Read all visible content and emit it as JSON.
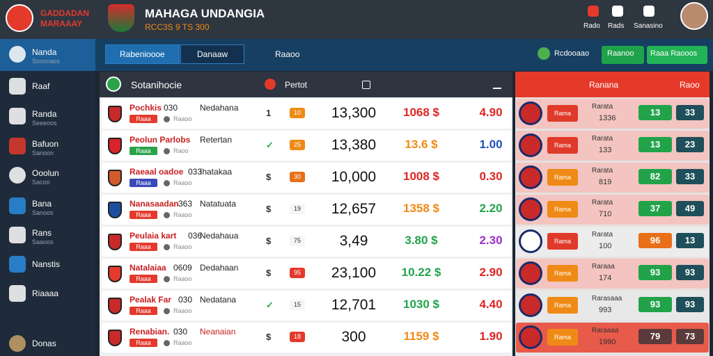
{
  "header": {
    "logo_line1": "GADDADAN",
    "logo_line2": "MARAAAY",
    "title": "MAHAGA UNDANGIA",
    "subtitle": "RCC3S 9 TS 300",
    "actions": [
      "Rado",
      "Rads",
      "Sanasino"
    ]
  },
  "sidebar": [
    {
      "label": "Nanda",
      "sub": "Sosonaos"
    },
    {
      "label": "Raaf"
    },
    {
      "label": "Randa",
      "sub": "Seeeoos"
    },
    {
      "label": "Bafuon",
      "sub": "Sanoon"
    },
    {
      "label": "Ooolun",
      "sub": "Sacoo"
    },
    {
      "label": "Bana",
      "sub": "Sanoos"
    },
    {
      "label": "Rans",
      "sub": "Saaoos"
    },
    {
      "label": "Nanstis"
    },
    {
      "label": "Riaaaa"
    },
    {
      "label": "Donas"
    }
  ],
  "tabs": [
    "Rabenioooe",
    "Danaaw",
    "Raaoo"
  ],
  "tab_actions": [
    "Rcdooaao",
    "Raanoo",
    "Raaa Raooos"
  ],
  "table": {
    "header": [
      "Sotanihocie",
      "Pertot"
    ],
    "rows": [
      {
        "team": "Pochkis",
        "code": "030",
        "opponent": "Nedahana",
        "tag": "Raaa",
        "info": "Raaoo",
        "mark": "1",
        "badge": "10",
        "odds": "13,300",
        "price": "1068 $",
        "price_color": "#e02424",
        "line": "4.90",
        "line_color": "#e02424"
      },
      {
        "team": "Peolun Parlobs",
        "code": "",
        "opponent": "Retertan",
        "tag": "Raaa",
        "info": "Raoo",
        "mark": "✓",
        "badge": "25",
        "odds": "13,380",
        "price": "13.6 $",
        "price_color": "#f08a16",
        "line": "1.00",
        "line_color": "#1f4fc0"
      },
      {
        "team": "Raeaal oadoe",
        "code": "033",
        "opponent": "Ihatakaa",
        "tag": "Raaa",
        "info": "Raaoo",
        "mark": "$",
        "badge": "30",
        "odds": "10,000",
        "price": "1008 $",
        "price_color": "#e02424",
        "line": "0.30",
        "line_color": "#e02424"
      },
      {
        "team": "Nanasaadan",
        "code": "363",
        "opponent": "Natatuata",
        "tag": "Raaa",
        "info": "Raaoo",
        "mark": "$",
        "badge": "19",
        "odds": "12,657",
        "price": "1358 $",
        "price_color": "#f08a16",
        "line": "2.20",
        "line_color": "#22a34a"
      },
      {
        "team": "Peulaia kart",
        "code": "036",
        "opponent": "Nedahaua",
        "tag": "Raaa",
        "info": "Raaoo",
        "mark": "$",
        "badge": "75",
        "odds": "3,49",
        "price": "3.80 $",
        "price_color": "#22a34a",
        "line": "2.30",
        "line_color": "#9b2fc8"
      },
      {
        "team": "Natalaiaa",
        "code": "0609",
        "opponent": "Dedahaan",
        "tag": "Raaa",
        "info": "Raaoo",
        "mark": "$",
        "badge": "95",
        "odds": "23,100",
        "price": "10.22 $",
        "price_color": "#22a34a",
        "line": "2.90",
        "line_color": "#e02424"
      },
      {
        "team": "Pealak Far",
        "code": "030",
        "opponent": "Nedatana",
        "tag": "Raaa",
        "info": "Raaoo",
        "mark": "✓",
        "badge": "15",
        "odds": "12,701",
        "price": "1030 $",
        "price_color": "#22a34a",
        "line": "4.40",
        "line_color": "#e02424"
      },
      {
        "team": "Renabian.",
        "code": "030",
        "opponent": "Neanaian",
        "tag": "Raaa",
        "info": "Raaoo",
        "mark": "$",
        "badge": "18",
        "odds": "300",
        "price": "1159 $",
        "price_color": "#f08a16",
        "line": "1.90",
        "line_color": "#e02424"
      }
    ]
  },
  "panel": {
    "header": [
      "Ranana",
      "Raoo"
    ],
    "rows": [
      {
        "tag": "Rama",
        "name": "Rarata",
        "value": "1336",
        "a": "13",
        "b": "33",
        "tag_color": "#e03a2a",
        "a_color": "#22a34a"
      },
      {
        "tag": "Rama",
        "name": "Rarata",
        "value": "133",
        "a": "13",
        "b": "23",
        "tag_color": "#e03a2a",
        "a_color": "#22a34a"
      },
      {
        "tag": "Rama",
        "name": "Rarata",
        "value": "819",
        "a": "82",
        "b": "33",
        "tag_color": "#f08a16",
        "a_color": "#22a34a"
      },
      {
        "tag": "Rama",
        "name": "Rarata",
        "value": "710",
        "a": "37",
        "b": "49",
        "tag_color": "#f08a16",
        "a_color": "#22a34a"
      },
      {
        "tag": "Rama",
        "name": "Rarata",
        "value": "100",
        "a": "96",
        "b": "13",
        "tag_color": "#e03a2a",
        "a_color": "#e8701a"
      },
      {
        "tag": "Rama",
        "name": "Raraaa",
        "value": "174",
        "a": "93",
        "b": "93",
        "tag_color": "#f08a16",
        "a_color": "#22a34a"
      },
      {
        "tag": "Rama",
        "name": "Rarasaaa",
        "value": "993",
        "a": "93",
        "b": "93",
        "tag_color": "#f08a16",
        "a_color": "#22a34a"
      },
      {
        "tag": "Rama",
        "name": "Raraaaa",
        "value": "1990",
        "a": "79",
        "b": "73",
        "tag_color": "#f08a16",
        "a_color": "#5a3a3a"
      }
    ]
  }
}
